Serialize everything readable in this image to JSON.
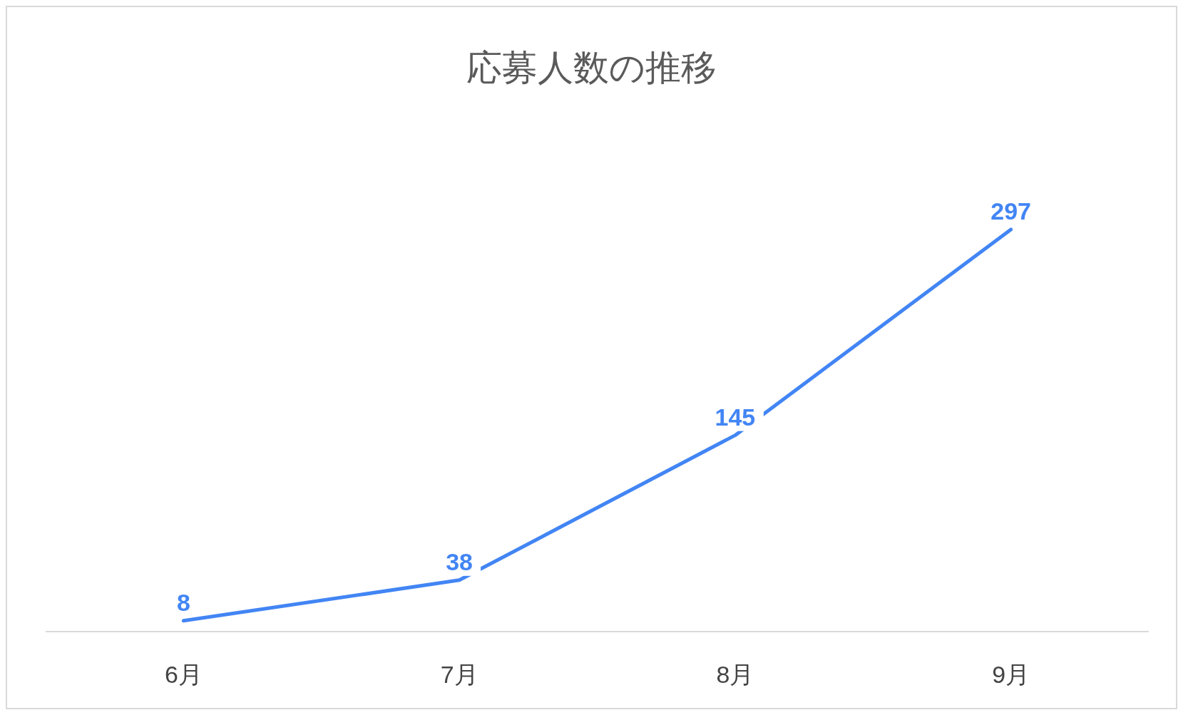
{
  "chart_data": {
    "type": "line",
    "title": "応募人数の推移",
    "categories": [
      "6月",
      "7月",
      "8月",
      "9月"
    ],
    "series": [
      {
        "color": "#4285f4",
        "values": [
          8,
          38,
          145,
          297
        ]
      }
    ],
    "data_labels": true
  }
}
